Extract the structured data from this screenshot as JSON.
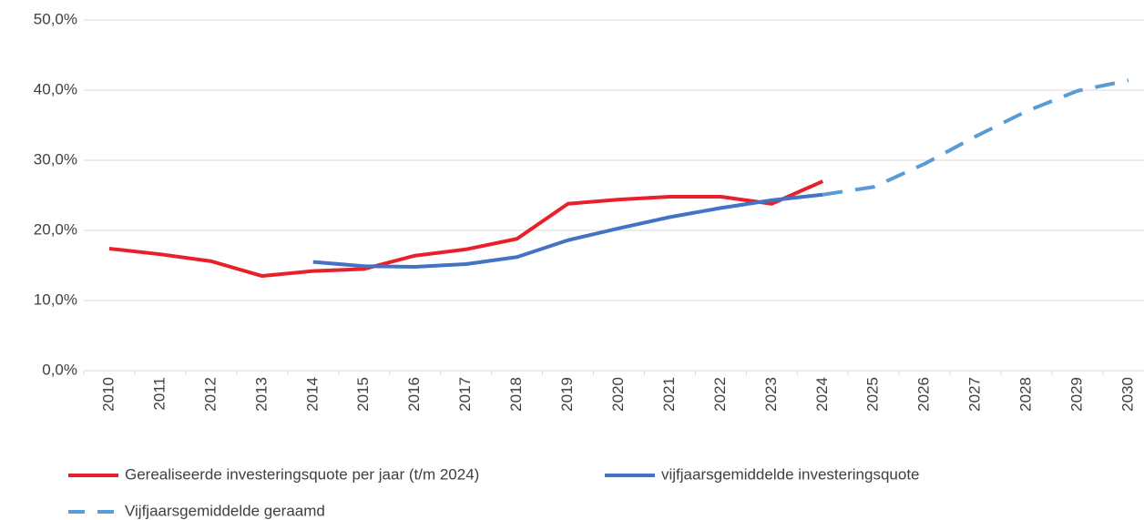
{
  "chart_data": {
    "type": "line",
    "categories": [
      "2010",
      "2011",
      "2012",
      "2013",
      "2014",
      "2015",
      "2016",
      "2017",
      "2018",
      "2019",
      "2020",
      "2021",
      "2022",
      "2023",
      "2024",
      "2025",
      "2026",
      "2027",
      "2028",
      "2029",
      "2030"
    ],
    "series": [
      {
        "name": "Gerealiseerde investeringsquote per jaar (t/m 2024)",
        "color": "#e8202a",
        "dashed": false,
        "values": [
          17.4,
          16.6,
          15.6,
          13.5,
          14.2,
          14.5,
          16.4,
          17.3,
          18.8,
          23.8,
          24.4,
          24.8,
          24.8,
          23.8,
          27.0,
          null,
          null,
          null,
          null,
          null,
          null
        ]
      },
      {
        "name": "vijfjaarsgemiddelde investeringsquote",
        "color": "#4472c4",
        "dashed": false,
        "values": [
          null,
          null,
          null,
          null,
          15.5,
          14.9,
          14.8,
          15.2,
          16.2,
          18.6,
          20.3,
          21.9,
          23.2,
          24.3,
          25.1,
          null,
          null,
          null,
          null,
          null,
          null
        ]
      },
      {
        "name": "Vijfjaarsgemiddelde geraamd",
        "color": "#5b9bd5",
        "dashed": true,
        "values": [
          null,
          null,
          null,
          null,
          null,
          null,
          null,
          null,
          null,
          null,
          null,
          null,
          null,
          null,
          25.1,
          26.2,
          29.5,
          33.4,
          37.0,
          39.9,
          41.4
        ]
      }
    ],
    "ylim": [
      0,
      50
    ],
    "yticks": [
      {
        "value": 0,
        "label": "0,0%"
      },
      {
        "value": 10,
        "label": "10,0%"
      },
      {
        "value": 20,
        "label": "20,0%"
      },
      {
        "value": 30,
        "label": "30,0%"
      },
      {
        "value": 40,
        "label": "40,0%"
      },
      {
        "value": 50,
        "label": "50,0%"
      }
    ],
    "grid": true
  }
}
